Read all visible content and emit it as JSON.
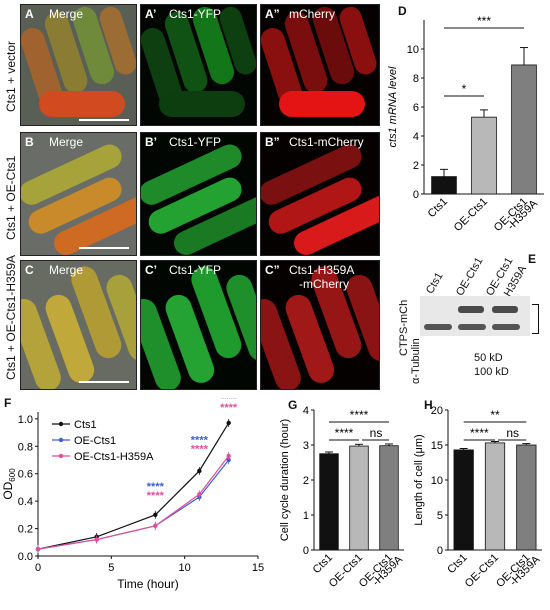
{
  "rows": [
    {
      "label": "Cts1 + vector",
      "panels": [
        {
          "letter": "A",
          "title": "Merge"
        },
        {
          "letter": "A’",
          "title": "Cts1-YFP"
        },
        {
          "letter": "A”",
          "title": "mCherry"
        }
      ]
    },
    {
      "label": "Cts1 + OE-Cts1",
      "panels": [
        {
          "letter": "B",
          "title": "Merge"
        },
        {
          "letter": "B’",
          "title": "Cts1-YFP"
        },
        {
          "letter": "B”",
          "title": "Cts1-mCherry"
        }
      ]
    },
    {
      "label": "Cts1 + OE-Cts1-H359A",
      "panels": [
        {
          "letter": "C",
          "title": "Merge"
        },
        {
          "letter": "C’",
          "title": "Cts1-YFP"
        },
        {
          "letter": "C”",
          "title": "Cts1-H359A",
          "title2": "-mCherry"
        }
      ]
    }
  ],
  "panel_d": {
    "letter": "D"
  },
  "panel_e": {
    "letter": "E",
    "lanes": [
      "Cts1",
      "OE-Cts1",
      "OE-Cts1",
      "-H359A"
    ],
    "band_labels": [
      "CTPS-mCh",
      "α-Tubulin"
    ],
    "sizes": [
      "50 kD",
      "100 kD"
    ]
  },
  "panel_f": {
    "letter": "F"
  },
  "panel_g": {
    "letter": "G"
  },
  "panel_h": {
    "letter": "H"
  },
  "chart_data": [
    {
      "id": "D",
      "type": "bar",
      "ylabel": "cts1 mRNA level",
      "categories": [
        "Cts1",
        "OE-Cts1",
        "OE-Cts1\n-H359A"
      ],
      "values": [
        1.2,
        5.3,
        8.9
      ],
      "errors": [
        0.5,
        0.5,
        1.2
      ],
      "colors": [
        "#111111",
        "#b8b8b8",
        "#7f7f7f"
      ],
      "ylim": [
        0,
        12
      ],
      "yticks": [
        0,
        2,
        4,
        6,
        8,
        10
      ],
      "significance": [
        {
          "from": 0,
          "to": 1,
          "label": "*"
        },
        {
          "from": 0,
          "to": 2,
          "label": "***"
        }
      ]
    },
    {
      "id": "F",
      "type": "line",
      "ylabel": "OD",
      "ylabel_sub": "600",
      "xlabel": "Time (hour)",
      "xlim": [
        0,
        15
      ],
      "ylim": [
        0,
        1.05
      ],
      "xticks": [
        0,
        5,
        10,
        15
      ],
      "yticks": [
        0.0,
        0.2,
        0.4,
        0.6,
        0.8,
        1.0
      ],
      "ytick_labels": [
        "0.0",
        "0.2",
        "0.4",
        "0.6",
        "0.8",
        "1.0"
      ],
      "series": [
        {
          "name": "Cts1",
          "color": "#111111",
          "x": [
            0,
            4,
            8,
            11,
            13
          ],
          "y": [
            0.05,
            0.14,
            0.3,
            0.62,
            0.97
          ]
        },
        {
          "name": "OE-Cts1",
          "color": "#3d5fd0",
          "x": [
            0,
            4,
            8,
            11,
            13
          ],
          "y": [
            0.05,
            0.12,
            0.22,
            0.43,
            0.7
          ]
        },
        {
          "name": "OE-Cts1-H359A",
          "color": "#e0509c",
          "x": [
            0,
            4,
            8,
            11,
            13
          ],
          "y": [
            0.05,
            0.12,
            0.22,
            0.45,
            0.73
          ]
        }
      ],
      "significance": [
        {
          "x": 8,
          "labels": [
            "****",
            "****"
          ]
        },
        {
          "x": 11,
          "labels": [
            "****",
            "****"
          ]
        },
        {
          "x": 13,
          "labels": [
            "****",
            "****"
          ]
        }
      ]
    },
    {
      "id": "G",
      "type": "bar",
      "ylabel": "Cell cycle duration (hour)",
      "categories": [
        "Cts1",
        "OE-Cts1",
        "OE-Cts1\n-H359A"
      ],
      "values": [
        2.75,
        2.97,
        2.98
      ],
      "errors": [
        0.05,
        0.05,
        0.05
      ],
      "colors": [
        "#111111",
        "#b8b8b8",
        "#7f7f7f"
      ],
      "ylim": [
        0,
        4
      ],
      "yticks": [
        0,
        1,
        2,
        3,
        4
      ],
      "significance": [
        {
          "from": 0,
          "to": 1,
          "label": "****"
        },
        {
          "from": 1,
          "to": 2,
          "label": "ns"
        },
        {
          "from": 0,
          "to": 2,
          "label": "****"
        }
      ]
    },
    {
      "id": "H",
      "type": "bar",
      "ylabel": "Length of cell (μm)",
      "categories": [
        "Cts1",
        "OE-Cts1",
        "OE-Cts1\n-H359A"
      ],
      "values": [
        14.3,
        15.3,
        15.0
      ],
      "errors": [
        0.2,
        0.2,
        0.2
      ],
      "colors": [
        "#111111",
        "#b8b8b8",
        "#7f7f7f"
      ],
      "ylim": [
        0,
        20
      ],
      "yticks": [
        0,
        5,
        10,
        15,
        20
      ],
      "significance": [
        {
          "from": 0,
          "to": 1,
          "label": "****"
        },
        {
          "from": 1,
          "to": 2,
          "label": "ns"
        },
        {
          "from": 0,
          "to": 2,
          "label": "**"
        }
      ]
    }
  ]
}
